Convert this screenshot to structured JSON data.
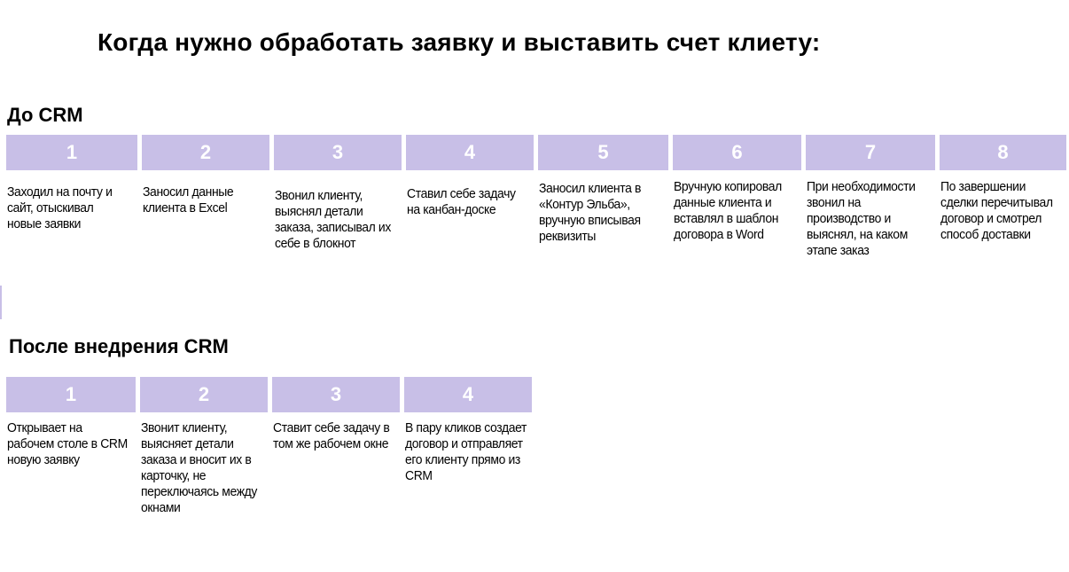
{
  "title": "Когда нужно обработать заявку и выставить счет клиету:",
  "before": {
    "heading": "До CRM",
    "steps": [
      {
        "num": "1",
        "text": "Заходил на почту и сайт, отыскивал новые заявки"
      },
      {
        "num": "2",
        "text": "Заносил данные клиента в Excel"
      },
      {
        "num": "3",
        "text": "Звонил клиенту, выяснял детали заказа, записывал их себе в блокнот"
      },
      {
        "num": "4",
        "text": "Ставил себе задачу на канбан-доске"
      },
      {
        "num": "5",
        "text": "Заносил клиента в «Контур Эльба», вручную вписывая реквизиты"
      },
      {
        "num": "6",
        "text": "Вручную копировал данные клиента и вставлял в шаблон договора в Word"
      },
      {
        "num": "7",
        "text": "При необходимости звонил на производство и выяснял, на каком этапе заказ"
      },
      {
        "num": "8",
        "text": "По завершении сделки перечитывал договор и смотрел способ доставки"
      }
    ]
  },
  "after": {
    "heading": "После внедрения CRM",
    "steps": [
      {
        "num": "1",
        "text": "Открывает на рабочем столе в CRM новую заявку"
      },
      {
        "num": "2",
        "text": "Звонит клиенту, выясняет детали заказа и вносит их в карточку, не переключаясь между окнами"
      },
      {
        "num": "3",
        "text": "Ставит себе задачу в том же рабочем окне"
      },
      {
        "num": "4",
        "text": "В пару кликов создает договор и отправляет его клиенту прямо из CRM"
      }
    ]
  },
  "colors": {
    "accent": "#c8bfe7"
  }
}
